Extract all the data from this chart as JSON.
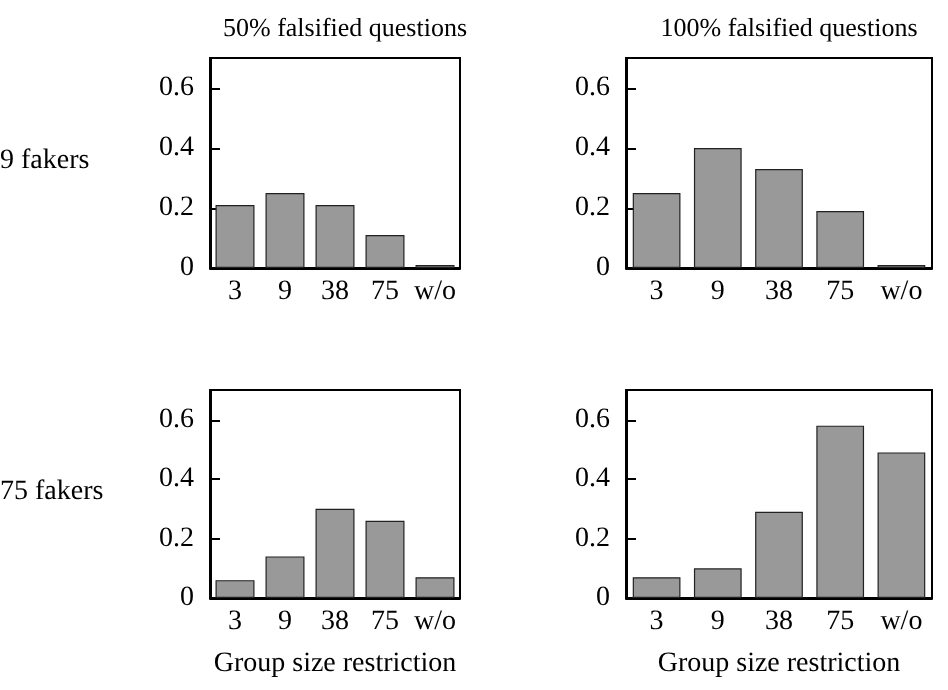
{
  "chart_data": [
    {
      "type": "bar",
      "title": "50% falsified questions",
      "ylabel": "9 fakers",
      "categories": [
        "3",
        "9",
        "38",
        "75",
        "w/o"
      ],
      "values": [
        0.21,
        0.25,
        0.21,
        0.11,
        0.01
      ],
      "color": "#999999",
      "ylim": [
        0,
        0.7
      ],
      "yticks": [
        0,
        0.2,
        0.4,
        0.6
      ],
      "grid": false
    },
    {
      "type": "bar",
      "title": "100% falsified questions",
      "categories": [
        "3",
        "9",
        "38",
        "75",
        "w/o"
      ],
      "values": [
        0.25,
        0.4,
        0.33,
        0.19,
        0.01
      ],
      "color": "#999999",
      "ylim": [
        0,
        0.7
      ],
      "yticks": [
        0,
        0.2,
        0.4,
        0.6
      ],
      "grid": false
    },
    {
      "type": "bar",
      "ylabel": "75 fakers",
      "xlabel": "Group size restriction",
      "categories": [
        "3",
        "9",
        "38",
        "75",
        "w/o"
      ],
      "values": [
        0.06,
        0.14,
        0.3,
        0.26,
        0.07
      ],
      "color": "#999999",
      "ylim": [
        0,
        0.7
      ],
      "yticks": [
        0,
        0.2,
        0.4,
        0.6
      ],
      "grid": false
    },
    {
      "type": "bar",
      "xlabel": "Group size restriction",
      "categories": [
        "3",
        "9",
        "38",
        "75",
        "w/o"
      ],
      "values": [
        0.07,
        0.1,
        0.29,
        0.58,
        0.49
      ],
      "color": "#999999",
      "ylim": [
        0,
        0.7
      ],
      "yticks": [
        0,
        0.2,
        0.4,
        0.6
      ],
      "grid": false
    }
  ]
}
